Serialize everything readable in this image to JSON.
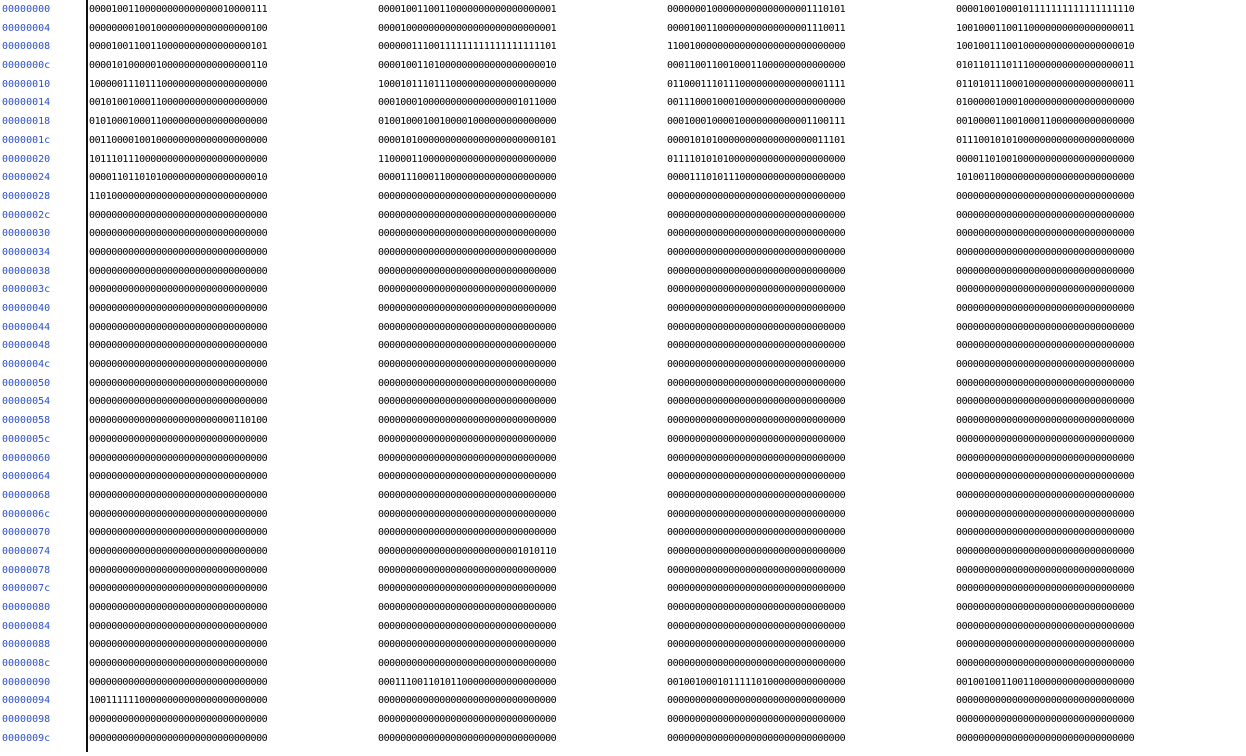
{
  "colors": {
    "address_text": "#2b4fc7",
    "data_text": "#000000",
    "background": "#ffffff",
    "divider": "#111111"
  },
  "rows": [
    {
      "address": "00000000",
      "words": [
        "00001001100000000000000010000111",
        "00001001100110000000000000000001",
        "00000001000000000000000001110101",
        "00001001000101111111111111111110"
      ]
    },
    {
      "address": "00000004",
      "words": [
        "00000000100100000000000000000100",
        "00001000000000000000000000000001",
        "00001001100000000000000001110011",
        "10010001100110000000000000000011"
      ]
    },
    {
      "address": "00000008",
      "words": [
        "00001001100110000000000000000101",
        "00000011100111111111111111111101",
        "11001000000000000000000000000000",
        "10010011100100000000000000000010"
      ]
    },
    {
      "address": "0000000c",
      "words": [
        "00001010000010000000000000000110",
        "00001001101000000000000000000010",
        "00011001100100011000000000000000",
        "01011011101110000000000000000011"
      ]
    },
    {
      "address": "00000010",
      "words": [
        "10000011101110000000000000000000",
        "10001011101110000000000000000000",
        "01100011101110000000000000001111",
        "01101011100010000000000000000011"
      ]
    },
    {
      "address": "00000014",
      "words": [
        "00101001000110000000000000000000",
        "00010001000000000000000001011000",
        "00111000100010000000000000000000",
        "01000001000100000000000000000000"
      ]
    },
    {
      "address": "00000018",
      "words": [
        "01010001000110000000000000000000",
        "01001000100100001000000000000000",
        "00010001000010000000000001100111",
        "00100001100100011000000000000000"
      ]
    },
    {
      "address": "0000001c",
      "words": [
        "00110000100100000000000000000000",
        "00001010000000000000000000000101",
        "00001010100000000000000000011101",
        "01110010101000000000000000000000"
      ]
    },
    {
      "address": "00000020",
      "words": [
        "10111011100000000000000000000000",
        "11000011000000000000000000000000",
        "01111010101000000000000000000000",
        "00001101001000000000000000000000"
      ]
    },
    {
      "address": "00000024",
      "words": [
        "00001101101010000000000000000010",
        "00001110001100000000000000000000",
        "00001110101110000000000000000000",
        "10100110000000000000000000000000"
      ]
    },
    {
      "address": "00000028",
      "words": [
        "11010000000000000000000000000000",
        "00000000000000000000000000000000",
        "00000000000000000000000000000000",
        "00000000000000000000000000000000"
      ]
    },
    {
      "address": "0000002c",
      "words": [
        "00000000000000000000000000000000",
        "00000000000000000000000000000000",
        "00000000000000000000000000000000",
        "00000000000000000000000000000000"
      ]
    },
    {
      "address": "00000030",
      "words": [
        "00000000000000000000000000000000",
        "00000000000000000000000000000000",
        "00000000000000000000000000000000",
        "00000000000000000000000000000000"
      ]
    },
    {
      "address": "00000034",
      "words": [
        "00000000000000000000000000000000",
        "00000000000000000000000000000000",
        "00000000000000000000000000000000",
        "00000000000000000000000000000000"
      ]
    },
    {
      "address": "00000038",
      "words": [
        "00000000000000000000000000000000",
        "00000000000000000000000000000000",
        "00000000000000000000000000000000",
        "00000000000000000000000000000000"
      ]
    },
    {
      "address": "0000003c",
      "words": [
        "00000000000000000000000000000000",
        "00000000000000000000000000000000",
        "00000000000000000000000000000000",
        "00000000000000000000000000000000"
      ]
    },
    {
      "address": "00000040",
      "words": [
        "00000000000000000000000000000000",
        "00000000000000000000000000000000",
        "00000000000000000000000000000000",
        "00000000000000000000000000000000"
      ]
    },
    {
      "address": "00000044",
      "words": [
        "00000000000000000000000000000000",
        "00000000000000000000000000000000",
        "00000000000000000000000000000000",
        "00000000000000000000000000000000"
      ]
    },
    {
      "address": "00000048",
      "words": [
        "00000000000000000000000000000000",
        "00000000000000000000000000000000",
        "00000000000000000000000000000000",
        "00000000000000000000000000000000"
      ]
    },
    {
      "address": "0000004c",
      "words": [
        "00000000000000000000000000000000",
        "00000000000000000000000000000000",
        "00000000000000000000000000000000",
        "00000000000000000000000000000000"
      ]
    },
    {
      "address": "00000050",
      "words": [
        "00000000000000000000000000000000",
        "00000000000000000000000000000000",
        "00000000000000000000000000000000",
        "00000000000000000000000000000000"
      ]
    },
    {
      "address": "00000054",
      "words": [
        "00000000000000000000000000000000",
        "00000000000000000000000000000000",
        "00000000000000000000000000000000",
        "00000000000000000000000000000000"
      ]
    },
    {
      "address": "00000058",
      "words": [
        "00000000000000000000000000110100",
        "00000000000000000000000000000000",
        "00000000000000000000000000000000",
        "00000000000000000000000000000000"
      ]
    },
    {
      "address": "0000005c",
      "words": [
        "00000000000000000000000000000000",
        "00000000000000000000000000000000",
        "00000000000000000000000000000000",
        "00000000000000000000000000000000"
      ]
    },
    {
      "address": "00000060",
      "words": [
        "00000000000000000000000000000000",
        "00000000000000000000000000000000",
        "00000000000000000000000000000000",
        "00000000000000000000000000000000"
      ]
    },
    {
      "address": "00000064",
      "words": [
        "00000000000000000000000000000000",
        "00000000000000000000000000000000",
        "00000000000000000000000000000000",
        "00000000000000000000000000000000"
      ]
    },
    {
      "address": "00000068",
      "words": [
        "00000000000000000000000000000000",
        "00000000000000000000000000000000",
        "00000000000000000000000000000000",
        "00000000000000000000000000000000"
      ]
    },
    {
      "address": "0000006c",
      "words": [
        "00000000000000000000000000000000",
        "00000000000000000000000000000000",
        "00000000000000000000000000000000",
        "00000000000000000000000000000000"
      ]
    },
    {
      "address": "00000070",
      "words": [
        "00000000000000000000000000000000",
        "00000000000000000000000000000000",
        "00000000000000000000000000000000",
        "00000000000000000000000000000000"
      ]
    },
    {
      "address": "00000074",
      "words": [
        "00000000000000000000000000000000",
        "00000000000000000000000001010110",
        "00000000000000000000000000000000",
        "00000000000000000000000000000000"
      ]
    },
    {
      "address": "00000078",
      "words": [
        "00000000000000000000000000000000",
        "00000000000000000000000000000000",
        "00000000000000000000000000000000",
        "00000000000000000000000000000000"
      ]
    },
    {
      "address": "0000007c",
      "words": [
        "00000000000000000000000000000000",
        "00000000000000000000000000000000",
        "00000000000000000000000000000000",
        "00000000000000000000000000000000"
      ]
    },
    {
      "address": "00000080",
      "words": [
        "00000000000000000000000000000000",
        "00000000000000000000000000000000",
        "00000000000000000000000000000000",
        "00000000000000000000000000000000"
      ]
    },
    {
      "address": "00000084",
      "words": [
        "00000000000000000000000000000000",
        "00000000000000000000000000000000",
        "00000000000000000000000000000000",
        "00000000000000000000000000000000"
      ]
    },
    {
      "address": "00000088",
      "words": [
        "00000000000000000000000000000000",
        "00000000000000000000000000000000",
        "00000000000000000000000000000000",
        "00000000000000000000000000000000"
      ]
    },
    {
      "address": "0000008c",
      "words": [
        "00000000000000000000000000000000",
        "00000000000000000000000000000000",
        "00000000000000000000000000000000",
        "00000000000000000000000000000000"
      ]
    },
    {
      "address": "00000090",
      "words": [
        "00000000000000000000000000000000",
        "00011100110101100000000000000000",
        "00100100010111110100000000000000",
        "00100100110011000000000000000000"
      ]
    },
    {
      "address": "00000094",
      "words": [
        "10011111100000000000000000000000",
        "00000000000000000000000000000000",
        "00000000000000000000000000000000",
        "00000000000000000000000000000000"
      ]
    },
    {
      "address": "00000098",
      "words": [
        "00000000000000000000000000000000",
        "00000000000000000000000000000000",
        "00000000000000000000000000000000",
        "00000000000000000000000000000000"
      ]
    },
    {
      "address": "0000009c",
      "words": [
        "00000000000000000000000000000000",
        "00000000000000000000000000000000",
        "00000000000000000000000000000000",
        "00000000000000000000000000000000"
      ]
    }
  ]
}
